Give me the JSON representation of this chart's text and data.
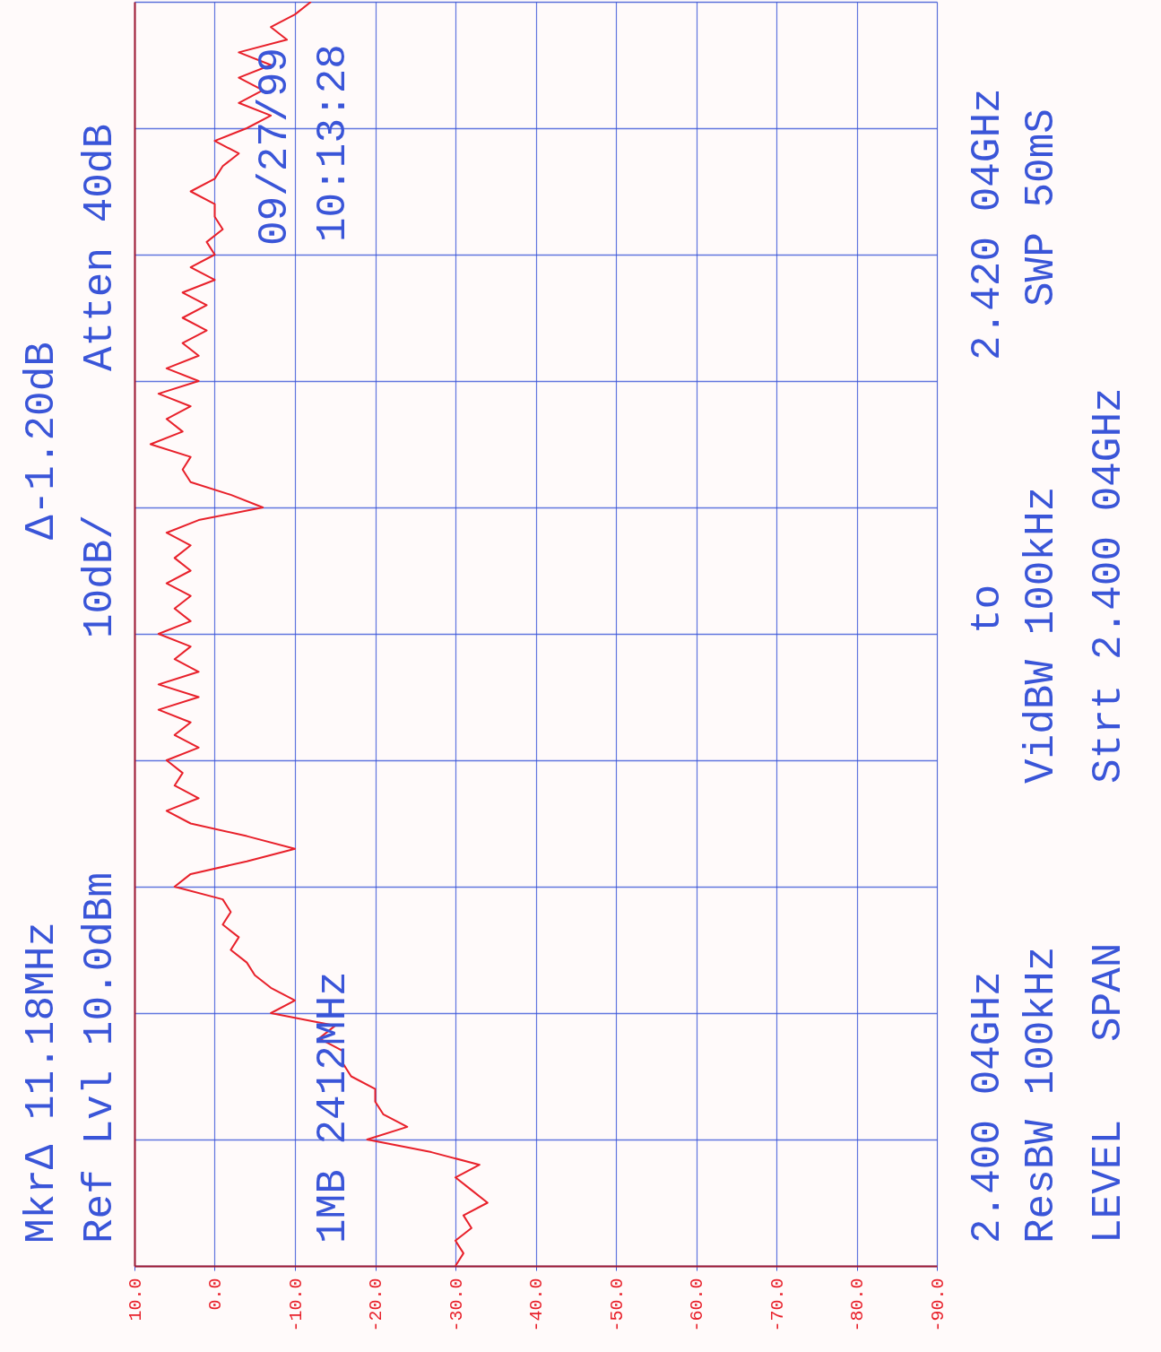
{
  "chart_data": {
    "type": "line",
    "orientation": "horizontal",
    "grid": true,
    "marker": "none",
    "line_style": "solid",
    "categories": [
      null,
      null,
      null,
      null,
      null,
      null,
      null,
      null,
      null,
      null,
      null,
      null,
      null,
      null,
      null,
      null,
      null,
      null,
      null,
      null,
      null,
      null,
      null,
      null,
      null,
      null,
      null,
      null,
      null,
      null,
      null,
      null,
      null,
      null,
      null,
      null,
      null,
      null,
      null,
      null,
      null,
      null,
      null,
      null,
      null,
      null,
      null,
      null,
      null,
      null,
      null,
      null,
      null,
      null,
      null,
      null,
      null,
      null,
      null,
      null,
      null,
      null,
      null,
      null,
      null,
      null,
      null,
      null,
      null,
      null,
      null,
      null,
      null,
      null,
      null,
      null,
      null,
      null,
      null,
      null,
      null,
      null,
      null,
      null,
      null,
      null,
      null,
      null,
      null,
      null,
      null,
      null,
      null,
      null,
      null,
      null,
      null,
      null,
      null,
      null,
      null
    ],
    "xlim": [
      10,
      -90
    ],
    "xticks": [
      {
        "value": 10,
        "label": "10.0"
      },
      {
        "value": 0,
        "label": "0.0"
      },
      {
        "value": -10,
        "label": "-10.0"
      },
      {
        "value": -20,
        "label": "-20.0"
      },
      {
        "value": -30,
        "label": "-30.0"
      },
      {
        "value": -40,
        "label": "-40.0"
      },
      {
        "value": -50,
        "label": "-50.0"
      },
      {
        "value": -60,
        "label": "-60.0"
      },
      {
        "value": -70,
        "label": "-70.0"
      },
      {
        "value": -80,
        "label": "-80.0"
      },
      {
        "value": -90,
        "label": "-90.0"
      }
    ],
    "annotations": [
      "MkrΔ 11.18MHz",
      "Ref Lvl 10.0dBm",
      "Δ-1.20dB",
      "10dB/",
      "Atten 40dB",
      "09/27/99",
      "10:13:28",
      "1MB 2412MHz",
      "2.400 04GHz",
      "to",
      "2.420 04GHz",
      "ResBW 100kHz",
      "VidBW 100kHz",
      "SWP 50mS",
      "LEVEL",
      "SPAN",
      "Strt 2.400 04GHz"
    ],
    "series": [
      {
        "color": "#e8202a",
        "values": [
          -12,
          -10,
          -7,
          -9,
          -3,
          -7,
          -3,
          -6,
          -3,
          -7,
          -4,
          0,
          -3,
          -1,
          0,
          3,
          0,
          0,
          -1,
          1,
          0,
          3,
          0,
          4,
          1,
          4,
          1,
          4,
          2,
          6,
          2,
          7,
          3,
          6,
          4,
          8,
          3,
          4,
          3,
          -2,
          -6,
          2,
          6,
          3,
          5,
          3,
          6,
          3,
          5,
          3,
          7,
          3,
          5,
          2,
          7,
          2,
          7,
          3,
          5,
          2,
          6,
          4,
          5,
          2,
          6,
          3,
          -4,
          -10,
          -4,
          3,
          5,
          -1,
          -2,
          -1,
          -3,
          -2,
          -4,
          -5,
          -7,
          -10,
          -7,
          -15,
          -13,
          -16,
          -16,
          -17,
          -20,
          -20,
          -21,
          -24,
          -19,
          -27,
          -33,
          -30,
          -32,
          -34,
          -31,
          -32,
          -30,
          -31,
          -30
        ]
      }
    ]
  }
}
